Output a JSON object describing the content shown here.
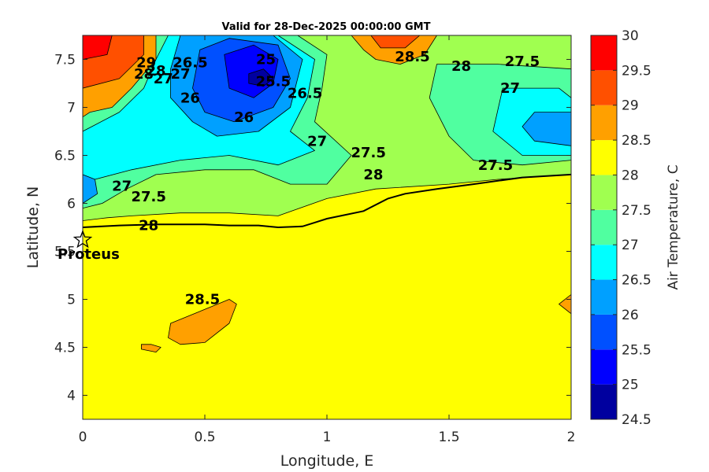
{
  "title": "Valid for 28-Dec-2025 00:00:00 GMT",
  "colorbar": {
    "label": "Air Temperature, C",
    "levels": [
      24.5,
      25,
      25.5,
      26,
      26.5,
      27,
      27.5,
      28,
      28.5,
      29,
      29.5,
      30
    ],
    "tick_labels": [
      "24.5",
      "25",
      "25.5",
      "26",
      "26.5",
      "27",
      "27.5",
      "28",
      "28.5",
      "29",
      "29.5",
      "30"
    ],
    "colors": [
      "#00009f",
      "#0000ff",
      "#0050ff",
      "#00a0ff",
      "#00ffff",
      "#50ffa0",
      "#a0ff50",
      "#ffff00",
      "#ffa000",
      "#ff5000",
      "#ff0000",
      "#aa0000"
    ]
  },
  "chart_data": {
    "type": "contour_map",
    "title": "Valid for 28-Dec-2025 00:00:00 GMT",
    "xlabel": "Longitude, E",
    "ylabel": "Latitude, N",
    "xlim": [
      0,
      2
    ],
    "ylim": [
      3.75,
      7.75
    ],
    "x_ticks": [
      0,
      0.5,
      1,
      1.5,
      2
    ],
    "x_tick_labels": [
      "0",
      "0.5",
      "1",
      "1.5",
      "2"
    ],
    "y_ticks": [
      4,
      4.5,
      5,
      5.5,
      6,
      6.5,
      7,
      7.5
    ],
    "y_tick_labels": [
      "4",
      "4.5",
      "5",
      "5.5",
      "6",
      "6.5",
      "7",
      "7.5"
    ],
    "background_value": 28,
    "regions": [
      {
        "band": "28-28.5",
        "color": "#a0ff50",
        "points": [
          [
            0,
            7.75
          ],
          [
            2,
            7.75
          ],
          [
            2,
            6.3
          ],
          [
            1.7,
            6.25
          ],
          [
            1.5,
            6.2
          ],
          [
            1.2,
            6.15
          ],
          [
            1.0,
            6.05
          ],
          [
            0.8,
            5.87
          ],
          [
            0.6,
            5.9
          ],
          [
            0.4,
            5.9
          ],
          [
            0.2,
            5.87
          ],
          [
            0.1,
            5.85
          ],
          [
            0,
            5.82
          ]
        ]
      },
      {
        "band": "27.5-28",
        "color": "#50ffa0",
        "points": [
          [
            0.3,
            7.75
          ],
          [
            0.88,
            7.75
          ],
          [
            1.0,
            7.55
          ],
          [
            0.98,
            7.2
          ],
          [
            0.95,
            6.85
          ],
          [
            1.1,
            6.5
          ],
          [
            1.0,
            6.2
          ],
          [
            0.85,
            6.2
          ],
          [
            0.7,
            6.35
          ],
          [
            0.5,
            6.35
          ],
          [
            0.3,
            6.3
          ],
          [
            0.18,
            6.15
          ],
          [
            0.08,
            6.0
          ],
          [
            0,
            5.95
          ],
          [
            0,
            6.95
          ],
          [
            0.1,
            7.1
          ],
          [
            0.2,
            7.3
          ]
        ]
      },
      {
        "band": "27.5-28",
        "color": "#50ffa0",
        "points": [
          [
            1.45,
            7.45
          ],
          [
            1.7,
            7.45
          ],
          [
            2,
            7.4
          ],
          [
            2,
            6.45
          ],
          [
            1.8,
            6.4
          ],
          [
            1.6,
            6.45
          ],
          [
            1.5,
            6.7
          ],
          [
            1.42,
            7.1
          ]
        ]
      },
      {
        "band": "27-27.5",
        "color": "#00ffff",
        "points": [
          [
            0.35,
            7.75
          ],
          [
            0.8,
            7.75
          ],
          [
            0.95,
            7.5
          ],
          [
            0.92,
            7.1
          ],
          [
            0.85,
            6.75
          ],
          [
            0.95,
            6.55
          ],
          [
            0.8,
            6.4
          ],
          [
            0.6,
            6.5
          ],
          [
            0.4,
            6.45
          ],
          [
            0.2,
            6.35
          ],
          [
            0.05,
            6.25
          ],
          [
            0,
            6.2
          ],
          [
            0,
            6.75
          ],
          [
            0.15,
            6.95
          ],
          [
            0.25,
            7.2
          ],
          [
            0.3,
            7.5
          ]
        ]
      },
      {
        "band": "27-27.5",
        "color": "#00ffff",
        "points": [
          [
            1.72,
            7.2
          ],
          [
            1.95,
            7.2
          ],
          [
            2,
            7.1
          ],
          [
            2,
            6.5
          ],
          [
            1.8,
            6.5
          ],
          [
            1.68,
            6.75
          ]
        ]
      },
      {
        "band": "26.5-27",
        "color": "#00a0ff",
        "points": [
          [
            0.4,
            7.75
          ],
          [
            0.78,
            7.75
          ],
          [
            0.9,
            7.5
          ],
          [
            0.85,
            7.0
          ],
          [
            0.72,
            6.75
          ],
          [
            0.55,
            6.7
          ],
          [
            0.45,
            6.85
          ],
          [
            0.36,
            7.1
          ],
          [
            0.36,
            7.4
          ]
        ]
      },
      {
        "band": "26.5-27",
        "color": "#00a0ff",
        "points": [
          [
            0,
            6.3
          ],
          [
            0.05,
            6.25
          ],
          [
            0.06,
            6.1
          ],
          [
            0,
            6.0
          ]
        ]
      },
      {
        "band": "26.5-27",
        "color": "#00a0ff",
        "points": [
          [
            1.85,
            6.95
          ],
          [
            2,
            6.95
          ],
          [
            2,
            6.6
          ],
          [
            1.85,
            6.65
          ],
          [
            1.8,
            6.8
          ]
        ]
      },
      {
        "band": "26-26.5",
        "color": "#0050ff",
        "points": [
          [
            0.48,
            7.6
          ],
          [
            0.6,
            7.72
          ],
          [
            0.8,
            7.65
          ],
          [
            0.85,
            7.3
          ],
          [
            0.78,
            7.0
          ],
          [
            0.62,
            6.85
          ],
          [
            0.5,
            6.95
          ],
          [
            0.45,
            7.2
          ]
        ]
      },
      {
        "band": "25.5-26",
        "color": "#0000ff",
        "points": [
          [
            0.58,
            7.55
          ],
          [
            0.7,
            7.65
          ],
          [
            0.8,
            7.5
          ],
          [
            0.78,
            7.25
          ],
          [
            0.7,
            7.1
          ],
          [
            0.6,
            7.2
          ]
        ]
      },
      {
        "band": "25-25.5",
        "color": "#00009f",
        "points": [
          [
            0.68,
            7.35
          ],
          [
            0.74,
            7.4
          ],
          [
            0.78,
            7.3
          ],
          [
            0.74,
            7.22
          ],
          [
            0.68,
            7.25
          ]
        ]
      },
      {
        "band": "28.5-29",
        "color": "#ffa000",
        "points": [
          [
            0,
            7.75
          ],
          [
            0.3,
            7.75
          ],
          [
            0.3,
            7.5
          ],
          [
            0.2,
            7.2
          ],
          [
            0.12,
            7.0
          ],
          [
            0.03,
            6.95
          ],
          [
            0,
            6.9
          ]
        ]
      },
      {
        "band": "28.5-29",
        "color": "#ffa000",
        "points": [
          [
            1.1,
            7.75
          ],
          [
            1.45,
            7.75
          ],
          [
            1.4,
            7.55
          ],
          [
            1.3,
            7.45
          ],
          [
            1.2,
            7.5
          ],
          [
            1.15,
            7.6
          ]
        ]
      },
      {
        "band": "29-29.5",
        "color": "#ff5000",
        "points": [
          [
            0,
            7.75
          ],
          [
            0.25,
            7.75
          ],
          [
            0.25,
            7.55
          ],
          [
            0.15,
            7.3
          ],
          [
            0,
            7.2
          ]
        ]
      },
      {
        "band": "29-29.5",
        "color": "#ff5000",
        "points": [
          [
            1.18,
            7.75
          ],
          [
            1.38,
            7.75
          ],
          [
            1.32,
            7.62
          ],
          [
            1.22,
            7.62
          ]
        ]
      },
      {
        "band": "29.5-30",
        "color": "#ff0000",
        "points": [
          [
            0,
            7.75
          ],
          [
            0.12,
            7.75
          ],
          [
            0.1,
            7.55
          ],
          [
            0,
            7.5
          ]
        ]
      },
      {
        "band": "28.5-29",
        "color": "#ffa000",
        "points": [
          [
            0.36,
            4.75
          ],
          [
            0.6,
            5.0
          ],
          [
            0.63,
            4.95
          ],
          [
            0.6,
            4.75
          ],
          [
            0.5,
            4.55
          ],
          [
            0.4,
            4.53
          ],
          [
            0.35,
            4.6
          ]
        ]
      },
      {
        "band": "28.5-29",
        "color": "#ffa000",
        "points": [
          [
            0.24,
            4.48
          ],
          [
            0.3,
            4.45
          ],
          [
            0.32,
            4.5
          ],
          [
            0.28,
            4.53
          ],
          [
            0.24,
            4.53
          ]
        ]
      },
      {
        "band": "28.5-29",
        "color": "#ffa000",
        "points": [
          [
            1.95,
            4.95
          ],
          [
            2,
            5.05
          ],
          [
            2,
            4.85
          ]
        ]
      }
    ],
    "coastline": [
      [
        0,
        5.75
      ],
      [
        0.15,
        5.77
      ],
      [
        0.3,
        5.78
      ],
      [
        0.5,
        5.78
      ],
      [
        0.6,
        5.77
      ],
      [
        0.72,
        5.77
      ],
      [
        0.8,
        5.75
      ],
      [
        0.9,
        5.76
      ],
      [
        0.95,
        5.8
      ],
      [
        1.0,
        5.84
      ],
      [
        1.15,
        5.92
      ],
      [
        1.25,
        6.05
      ],
      [
        1.32,
        6.1
      ],
      [
        1.45,
        6.15
      ],
      [
        1.6,
        6.2
      ],
      [
        1.8,
        6.27
      ],
      [
        2,
        6.3
      ]
    ],
    "station": {
      "name": "Proteus",
      "lon": 0.0,
      "lat": 5.62
    },
    "contour_labels": [
      {
        "text": "28.5",
        "lon": 1.35,
        "lat": 7.48
      },
      {
        "text": "28",
        "lon": 1.55,
        "lat": 7.38
      },
      {
        "text": "27.5",
        "lon": 1.8,
        "lat": 7.43
      },
      {
        "text": "27",
        "lon": 1.75,
        "lat": 7.15
      },
      {
        "text": "28",
        "lon": 0.25,
        "lat": 7.3
      },
      {
        "text": "29",
        "lon": 0.26,
        "lat": 7.42
      },
      {
        "text": "28",
        "lon": 0.3,
        "lat": 7.33
      },
      {
        "text": "27",
        "lon": 0.33,
        "lat": 7.25
      },
      {
        "text": "27",
        "lon": 0.4,
        "lat": 7.3
      },
      {
        "text": "26.5",
        "lon": 0.44,
        "lat": 7.42
      },
      {
        "text": "26",
        "lon": 0.44,
        "lat": 7.05
      },
      {
        "text": "25",
        "lon": 0.75,
        "lat": 7.45
      },
      {
        "text": "25.5",
        "lon": 0.78,
        "lat": 7.22
      },
      {
        "text": "26.5",
        "lon": 0.91,
        "lat": 7.1
      },
      {
        "text": "26",
        "lon": 0.66,
        "lat": 6.85
      },
      {
        "text": "27",
        "lon": 0.96,
        "lat": 6.6
      },
      {
        "text": "27.5",
        "lon": 1.17,
        "lat": 6.48
      },
      {
        "text": "28",
        "lon": 1.19,
        "lat": 6.25
      },
      {
        "text": "27.5",
        "lon": 1.69,
        "lat": 6.35
      },
      {
        "text": "27",
        "lon": 0.16,
        "lat": 6.13
      },
      {
        "text": "27.5",
        "lon": 0.27,
        "lat": 6.02
      },
      {
        "text": "28",
        "lon": 0.27,
        "lat": 5.72
      },
      {
        "text": "28.5",
        "lon": 0.49,
        "lat": 4.95
      }
    ]
  }
}
